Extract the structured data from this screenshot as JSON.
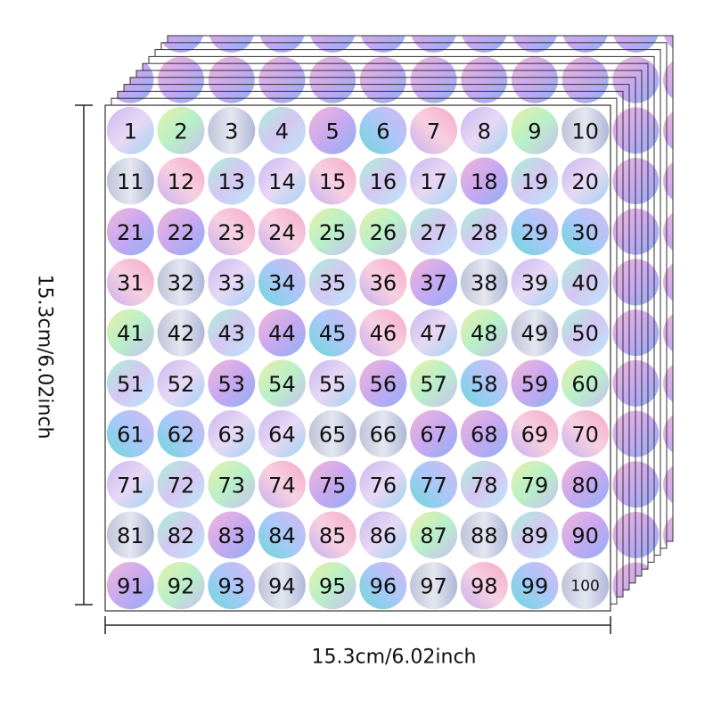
{
  "stickers": [
    "1",
    "2",
    "3",
    "4",
    "5",
    "6",
    "7",
    "8",
    "9",
    "10",
    "11",
    "12",
    "13",
    "14",
    "15",
    "16",
    "17",
    "18",
    "19",
    "20",
    "21",
    "22",
    "23",
    "24",
    "25",
    "26",
    "27",
    "28",
    "29",
    "30",
    "31",
    "32",
    "33",
    "34",
    "35",
    "36",
    "37",
    "38",
    "39",
    "40",
    "41",
    "42",
    "43",
    "44",
    "45",
    "46",
    "47",
    "48",
    "49",
    "50",
    "51",
    "52",
    "53",
    "54",
    "55",
    "56",
    "57",
    "58",
    "59",
    "60",
    "61",
    "62",
    "63",
    "64",
    "65",
    "66",
    "67",
    "68",
    "69",
    "70",
    "71",
    "72",
    "73",
    "74",
    "75",
    "76",
    "77",
    "78",
    "79",
    "80",
    "81",
    "82",
    "83",
    "84",
    "85",
    "86",
    "87",
    "88",
    "89",
    "90",
    "91",
    "92",
    "93",
    "94",
    "95",
    "96",
    "97",
    "98",
    "99",
    "100"
  ],
  "dimensions": {
    "height": "15.3cm/6.02inch",
    "width": "15.3cm/6.02inch"
  }
}
